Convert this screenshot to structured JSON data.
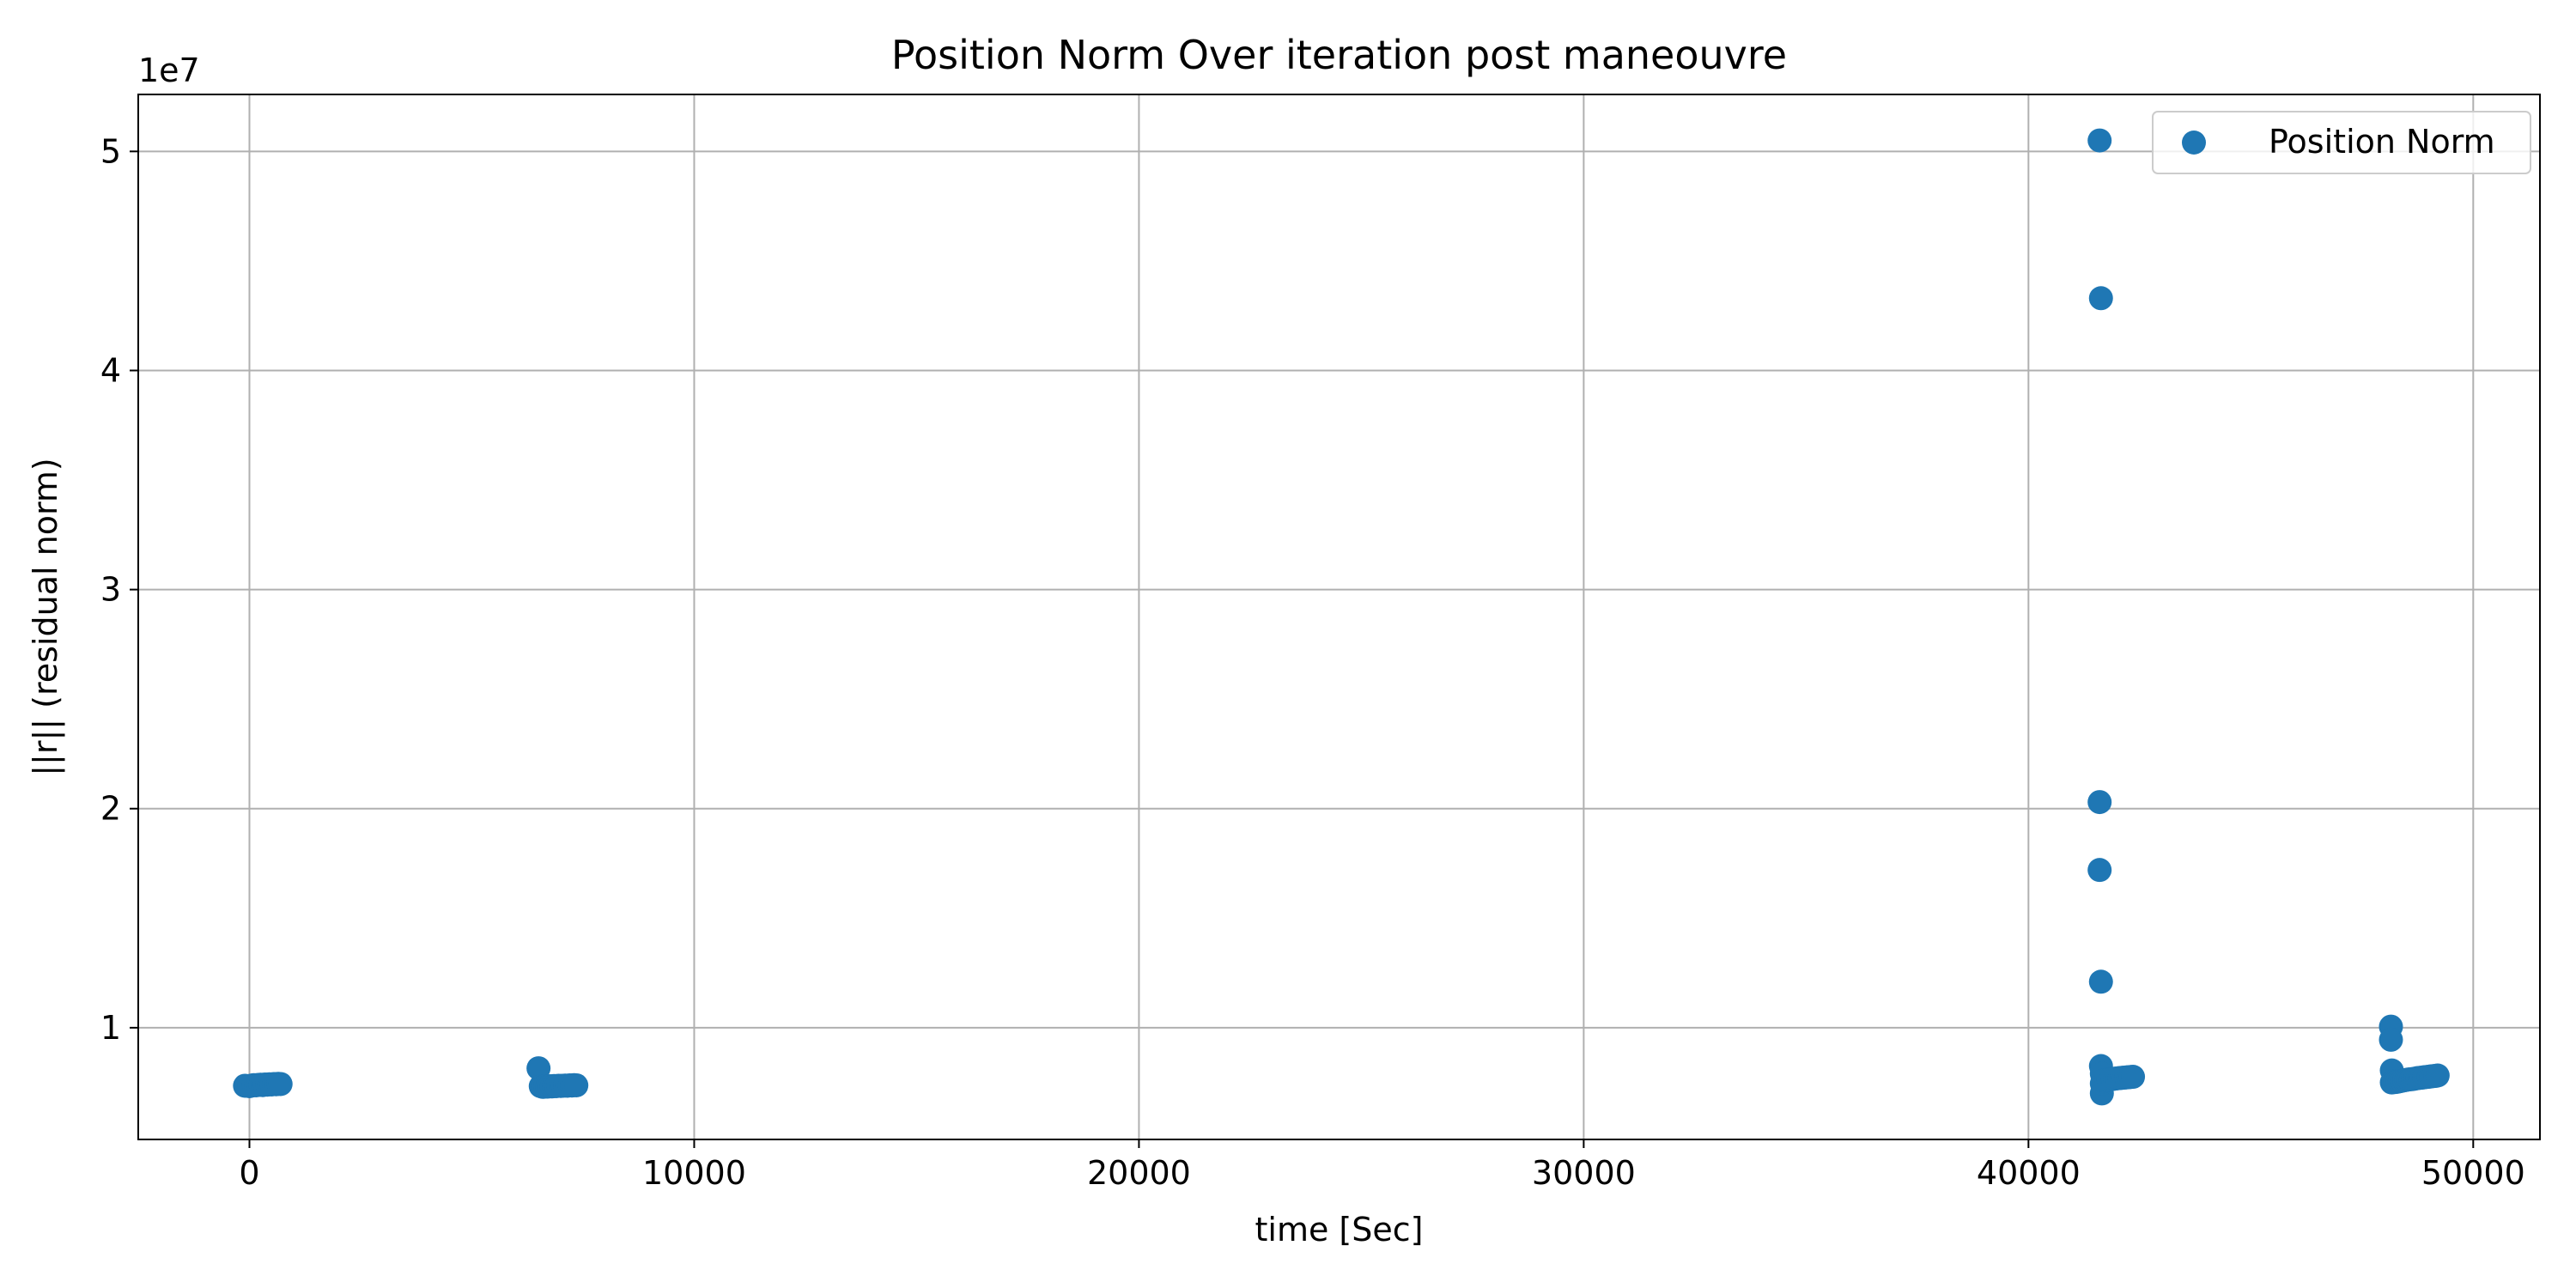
{
  "chart_data": {
    "type": "scatter",
    "title": "Position Norm Over iteration post maneouvre",
    "xlabel": "time [Sec]",
    "ylabel": "||r|| (residual norm)",
    "y_offset_label": "1e7",
    "xlim": [
      -2500,
      51500
    ],
    "ylim": [
      4.9,
      52.6
    ],
    "x_ticks": [
      0,
      10000,
      20000,
      30000,
      40000,
      50000
    ],
    "x_tick_labels": [
      "0",
      "10000",
      "20000",
      "30000",
      "40000",
      "50000"
    ],
    "y_ticks": [
      10,
      20,
      30,
      40,
      50
    ],
    "y_tick_labels": [
      "1",
      "2",
      "3",
      "4",
      "5"
    ],
    "y_scale_factor": 1000000,
    "grid": true,
    "legend_position": "top-right",
    "marker_color": "#1f77b4",
    "series": [
      {
        "name": "Position Norm",
        "x": [
          -100,
          0,
          50,
          100,
          150,
          200,
          250,
          300,
          350,
          400,
          450,
          500,
          550,
          600,
          650,
          700,
          6500,
          6550,
          6600,
          6650,
          6700,
          6750,
          6800,
          6850,
          6900,
          6950,
          7000,
          7050,
          7100,
          7150,
          7200,
          7250,
          7300,
          7350,
          41600,
          41630,
          41600,
          41600,
          41630,
          41630,
          41650,
          41650,
          41650,
          41680,
          41700,
          41750,
          41800,
          41850,
          41900,
          41950,
          42000,
          42050,
          42100,
          42150,
          42200,
          42250,
          42300,
          42350,
          48150,
          48150,
          48170,
          48170,
          48200,
          48250,
          48300,
          48350,
          48400,
          48450,
          48500,
          48550,
          48600,
          48650,
          48700,
          48750,
          48800,
          48850,
          48900,
          48950,
          49000,
          49050,
          49100,
          49150,
          49200
        ],
        "y": [
          7.35,
          7.33,
          7.36,
          7.38,
          7.37,
          7.39,
          7.4,
          7.38,
          7.41,
          7.4,
          7.42,
          7.41,
          7.43,
          7.42,
          7.44,
          7.43,
          8.15,
          7.33,
          7.3,
          7.32,
          7.31,
          7.33,
          7.32,
          7.34,
          7.33,
          7.35,
          7.34,
          7.35,
          7.36,
          7.35,
          7.37,
          7.36,
          7.38,
          7.37,
          50.5,
          43.3,
          20.3,
          17.2,
          12.1,
          8.25,
          7.0,
          7.45,
          7.9,
          7.55,
          7.6,
          7.62,
          7.64,
          7.65,
          7.66,
          7.68,
          7.69,
          7.7,
          7.71,
          7.72,
          7.73,
          7.74,
          7.75,
          7.76,
          10.05,
          9.45,
          8.05,
          7.5,
          7.55,
          7.52,
          7.54,
          7.56,
          7.58,
          7.6,
          7.62,
          7.64,
          7.65,
          7.66,
          7.68,
          7.7,
          7.71,
          7.72,
          7.74,
          7.75,
          7.76,
          7.78,
          7.79,
          7.8,
          7.82
        ]
      }
    ]
  }
}
